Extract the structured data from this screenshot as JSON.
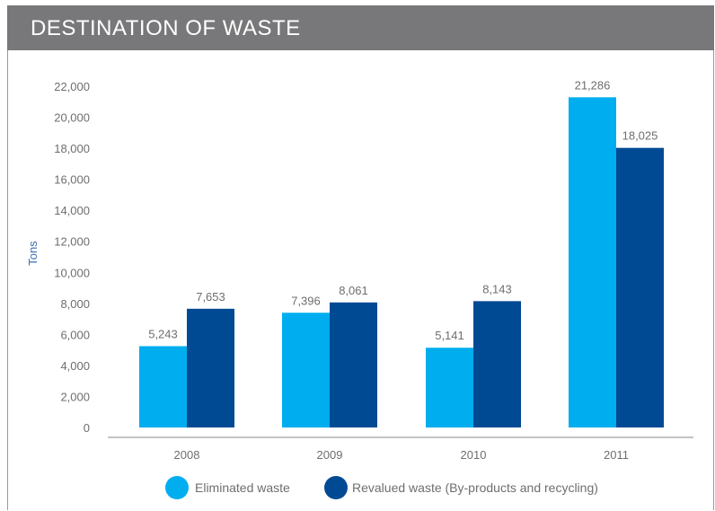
{
  "title": "DESTINATION OF WASTE",
  "colors": {
    "header_bg": "#78787a",
    "eliminated": "#00aeef",
    "revalued": "#004a94",
    "axis_text": "#6d6e71",
    "ylabel": "#3a6fb0"
  },
  "chart_data": {
    "type": "bar",
    "title": "DESTINATION OF WASTE",
    "xlabel": "",
    "ylabel": "Tons",
    "categories": [
      "2008",
      "2009",
      "2010",
      "2011"
    ],
    "series": [
      {
        "name": "Eliminated waste",
        "values": [
          5243,
          7396,
          5141,
          21286
        ],
        "labels": [
          "5,243",
          "7,396",
          "5,141",
          "21,286"
        ],
        "color": "#00aeef"
      },
      {
        "name": "Revalued waste (By-products and recycling)",
        "values": [
          7653,
          8061,
          8143,
          18025
        ],
        "labels": [
          "7,653",
          "8,061",
          "8,143",
          "18,025"
        ],
        "color": "#004a94"
      }
    ],
    "ylim": [
      0,
      22000
    ],
    "yticks": [
      0,
      2000,
      4000,
      6000,
      8000,
      10000,
      12000,
      14000,
      16000,
      18000,
      20000,
      22000
    ],
    "ytick_labels": [
      "0",
      "2,000",
      "4,000",
      "6,000",
      "8,000",
      "10,000",
      "12,000",
      "14,000",
      "16,000",
      "18,000",
      "20,000",
      "22,000"
    ],
    "grid": false,
    "legend": "bottom-center"
  }
}
